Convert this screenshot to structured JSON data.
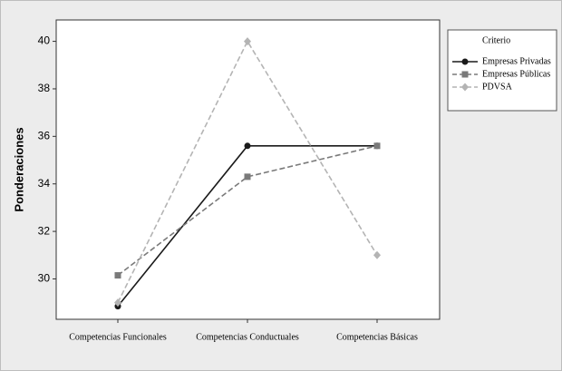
{
  "chart_data": {
    "type": "line",
    "ylabel": "Ponderaciones",
    "categories": [
      "Competencias Funcionales",
      "Competencias Conductuales",
      "Competencias Básicas"
    ],
    "series": [
      {
        "name": "Empresas Privadas",
        "color": "#1a1a1a",
        "dash": false,
        "marker": "circle",
        "values": [
          28.85,
          35.6,
          35.6
        ]
      },
      {
        "name": "Empresas Públicas",
        "color": "#7a7a7a",
        "dash": true,
        "marker": "square",
        "values": [
          30.15,
          34.3,
          35.6
        ]
      },
      {
        "name": "PDVSA",
        "color": "#b4b4b4",
        "dash": true,
        "marker": "diamond",
        "values": [
          29.0,
          40,
          31
        ]
      }
    ],
    "legend_title": "Criterio",
    "ylim": [
      28.3,
      40.9
    ],
    "yticks": [
      30,
      32,
      34,
      36,
      38,
      40
    ]
  }
}
